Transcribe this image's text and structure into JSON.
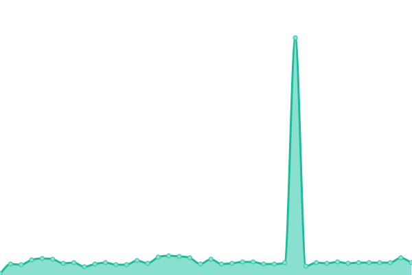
{
  "chart_data": {
    "type": "area",
    "title": "",
    "xlabel": "",
    "ylabel": "",
    "x": [
      0,
      1,
      2,
      3,
      4,
      5,
      6,
      7,
      8,
      9,
      10,
      11,
      12,
      13,
      14,
      15,
      16,
      17,
      18,
      19,
      20,
      21,
      22,
      23,
      24,
      25,
      26,
      27,
      28,
      29,
      30,
      31,
      32,
      33,
      34,
      35,
      36,
      37,
      38,
      39
    ],
    "values": [
      2,
      16,
      15,
      22,
      24,
      23,
      17,
      18,
      12,
      16,
      18,
      15,
      15,
      21,
      17,
      26,
      28,
      27,
      25,
      16,
      23,
      16,
      17,
      19,
      19,
      16,
      16,
      18,
      345,
      13,
      18,
      17,
      19,
      17,
      18,
      18,
      18,
      18,
      25,
      18
    ],
    "ylim": [
      0,
      400
    ],
    "grid": false,
    "axes_visible": false,
    "smooth": true,
    "colors": {
      "line": "#1abc9c",
      "fill": "#8ae0cf",
      "marker_fill": "#8ae0cf",
      "marker_stroke": "#3cc7a6"
    }
  }
}
